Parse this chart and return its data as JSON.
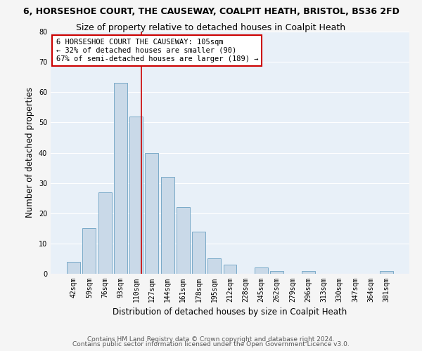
{
  "title_line1": "6, HORSESHOE COURT, THE CAUSEWAY, COALPIT HEATH, BRISTOL, BS36 2FD",
  "title_line2": "Size of property relative to detached houses in Coalpit Heath",
  "xlabel": "Distribution of detached houses by size in Coalpit Heath",
  "ylabel": "Number of detached properties",
  "categories": [
    "42sqm",
    "59sqm",
    "76sqm",
    "93sqm",
    "110sqm",
    "127sqm",
    "144sqm",
    "161sqm",
    "178sqm",
    "195sqm",
    "212sqm",
    "228sqm",
    "245sqm",
    "262sqm",
    "279sqm",
    "296sqm",
    "313sqm",
    "330sqm",
    "347sqm",
    "364sqm",
    "381sqm"
  ],
  "values": [
    4,
    15,
    27,
    63,
    52,
    40,
    32,
    22,
    14,
    5,
    3,
    0,
    2,
    1,
    0,
    1,
    0,
    0,
    0,
    0,
    1
  ],
  "bar_color": "#c9d9e8",
  "bar_edge_color": "#7aaac8",
  "background_color": "#e8f0f8",
  "grid_color": "#ffffff",
  "marker_line_index": 4,
  "marker_line_color": "#cc0000",
  "annotation_text": "6 HORSESHOE COURT THE CAUSEWAY: 105sqm\n← 32% of detached houses are smaller (90)\n67% of semi-detached houses are larger (189) →",
  "annotation_box_color": "#ffffff",
  "annotation_box_edge_color": "#cc0000",
  "ylim": [
    0,
    80
  ],
  "yticks": [
    0,
    10,
    20,
    30,
    40,
    50,
    60,
    70,
    80
  ],
  "footer_line1": "Contains HM Land Registry data © Crown copyright and database right 2024.",
  "footer_line2": "Contains public sector information licensed under the Open Government Licence v3.0.",
  "title1_fontsize": 9,
  "title2_fontsize": 9,
  "axis_label_fontsize": 8.5,
  "tick_fontsize": 7,
  "annotation_fontsize": 7.5,
  "footer_fontsize": 6.5
}
